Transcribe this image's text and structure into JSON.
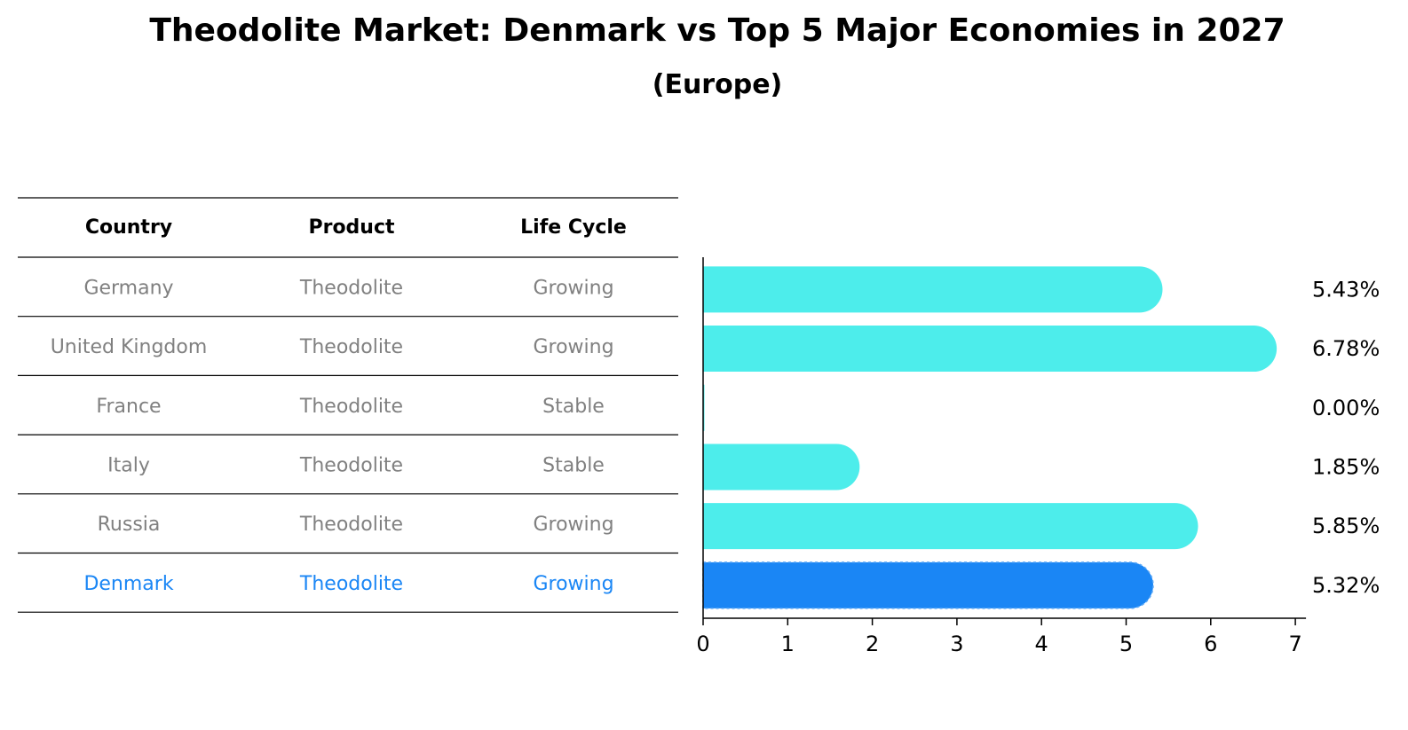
{
  "chart_data": {
    "type": "bar",
    "orientation": "horizontal",
    "title": "Theodolite Market: Denmark vs Top 5 Major Economies in 2027",
    "subtitle": "(Europe)",
    "table": {
      "headers": [
        "Country",
        "Product",
        "Life Cycle"
      ],
      "rows": [
        [
          "Germany",
          "Theodolite",
          "Growing"
        ],
        [
          "United Kingdom",
          "Theodolite",
          "Growing"
        ],
        [
          "France",
          "Theodolite",
          "Stable"
        ],
        [
          "Italy",
          "Theodolite",
          "Stable"
        ],
        [
          "Russia",
          "Theodolite",
          "Growing"
        ],
        [
          "Denmark",
          "Theodolite",
          "Growing"
        ]
      ],
      "highlight_row": 5
    },
    "categories": [
      "Germany",
      "United Kingdom",
      "France",
      "Italy",
      "Russia",
      "Denmark"
    ],
    "values": [
      5.43,
      6.78,
      0.0,
      1.85,
      5.85,
      5.32
    ],
    "value_labels": [
      "5.43%",
      "6.78%",
      "0.00%",
      "1.85%",
      "5.85%",
      "5.32%"
    ],
    "xlim": [
      0,
      7
    ],
    "xticks": [
      "0",
      "1",
      "2",
      "3",
      "4",
      "5",
      "6",
      "7"
    ],
    "xlabel": "",
    "ylabel": "",
    "colors": {
      "bar": "#4DEDEB",
      "highlight_bar": "#1A86F5",
      "text_muted": "#808080",
      "text_highlight": "#1A86F5",
      "rule": "#000000"
    }
  }
}
